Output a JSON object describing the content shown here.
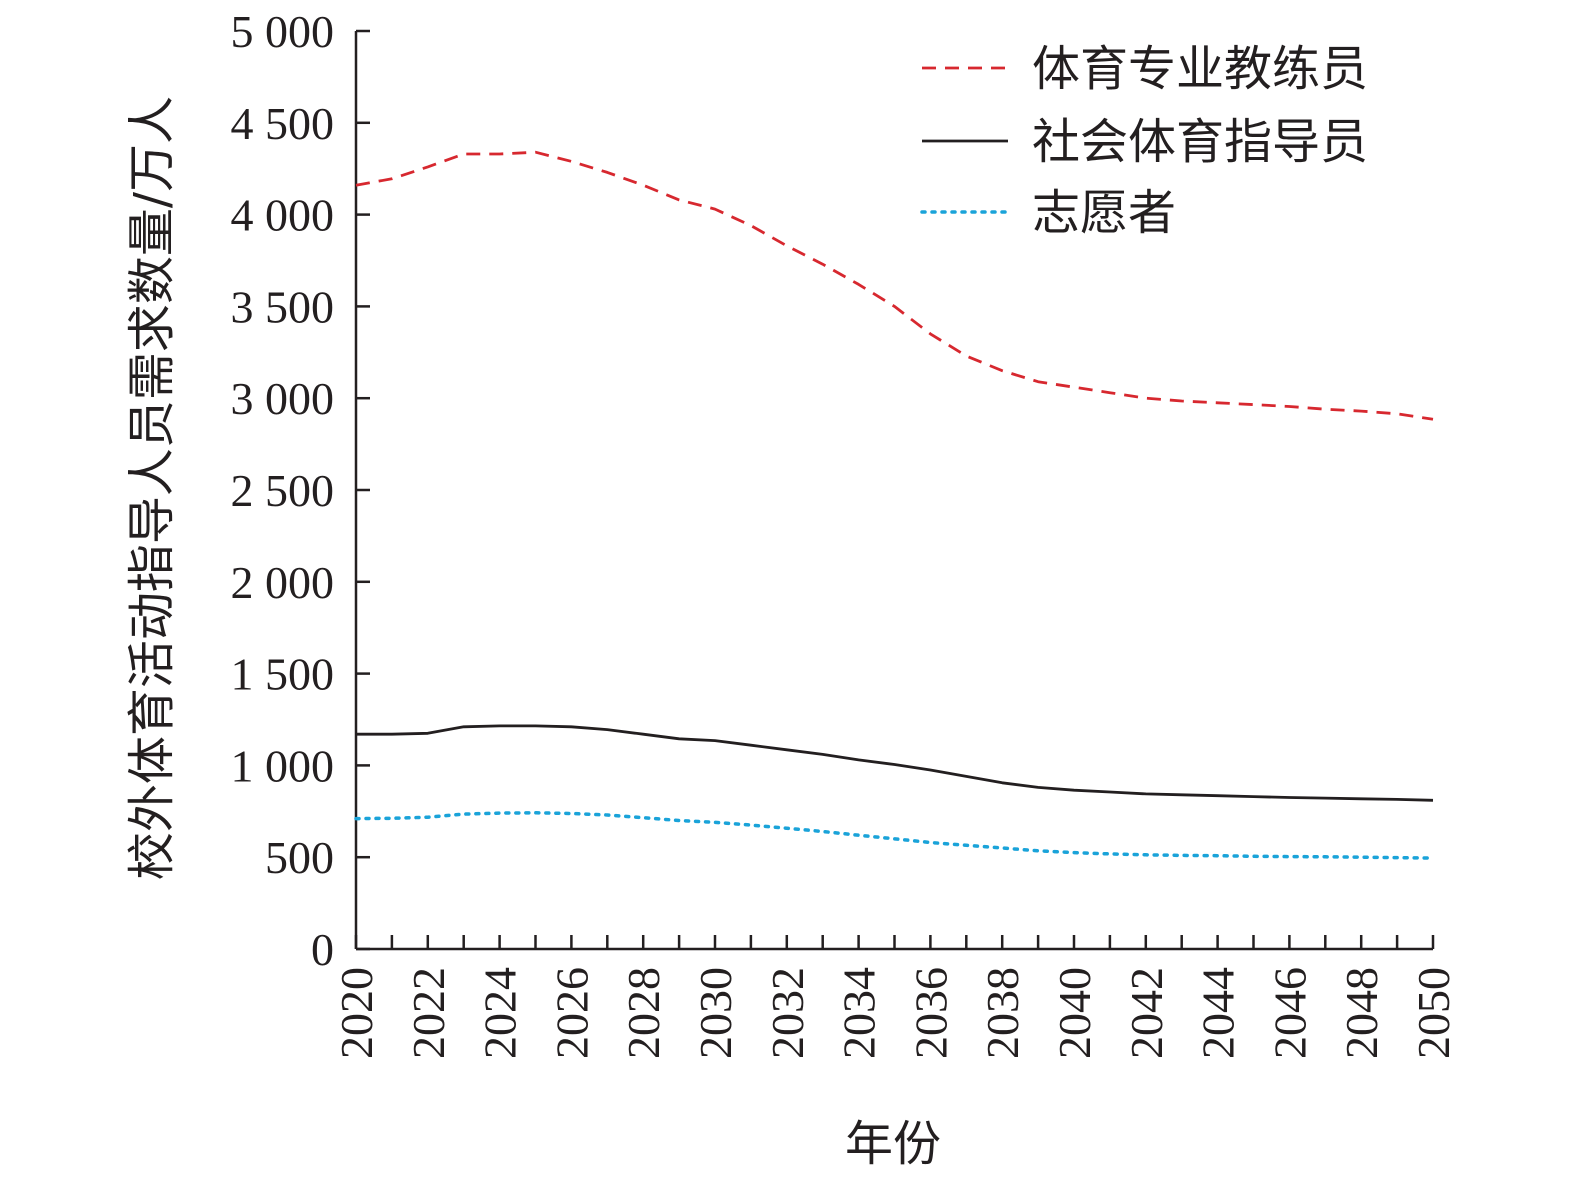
{
  "chart_data": {
    "type": "line",
    "title": "",
    "xlabel": "年份",
    "ylabel": "校外体育活动指导人员需求数量/万人",
    "xlim": [
      2020,
      2050
    ],
    "ylim": [
      0,
      5000
    ],
    "x_ticks": [
      "2020",
      "2022",
      "2024",
      "2026",
      "2028",
      "2030",
      "2032",
      "2034",
      "2036",
      "2038",
      "2040",
      "2042",
      "2044",
      "2046",
      "2048",
      "2050"
    ],
    "y_ticks": [
      "0",
      "500",
      "1 000",
      "1 500",
      "2 000",
      "2 500",
      "3 000",
      "3 500",
      "4 000",
      "4 500",
      "5 000"
    ],
    "legend_position": "top-right",
    "grid": false,
    "x": [
      2020,
      2021,
      2022,
      2023,
      2024,
      2025,
      2026,
      2027,
      2028,
      2029,
      2030,
      2031,
      2032,
      2033,
      2034,
      2035,
      2036,
      2037,
      2038,
      2039,
      2040,
      2041,
      2042,
      2043,
      2044,
      2045,
      2046,
      2047,
      2048,
      2049,
      2050
    ],
    "series": [
      {
        "name": "体育专业教练员",
        "color": "#d7282f",
        "style": "dashed",
        "values": [
          4160,
          4195,
          4260,
          4330,
          4330,
          4340,
          4290,
          4230,
          4160,
          4080,
          4030,
          3940,
          3830,
          3730,
          3620,
          3500,
          3350,
          3230,
          3150,
          3090,
          3060,
          3030,
          3000,
          2985,
          2975,
          2965,
          2955,
          2940,
          2930,
          2915,
          2885
        ]
      },
      {
        "name": "社会体育指导员",
        "color": "#231f20",
        "style": "solid",
        "values": [
          1170,
          1170,
          1175,
          1210,
          1215,
          1215,
          1210,
          1195,
          1170,
          1145,
          1135,
          1110,
          1085,
          1060,
          1030,
          1005,
          975,
          940,
          905,
          880,
          865,
          855,
          845,
          840,
          835,
          830,
          825,
          822,
          818,
          815,
          810
        ]
      },
      {
        "name": "志愿者",
        "color": "#1aa3d9",
        "style": "dotted",
        "values": [
          710,
          712,
          718,
          735,
          740,
          742,
          738,
          730,
          715,
          700,
          690,
          675,
          658,
          640,
          620,
          600,
          580,
          565,
          550,
          535,
          525,
          518,
          513,
          510,
          508,
          505,
          503,
          502,
          500,
          498,
          495
        ]
      }
    ]
  }
}
